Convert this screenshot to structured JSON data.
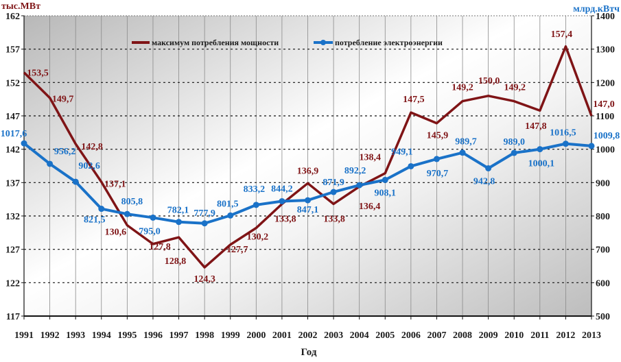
{
  "chart_data": {
    "type": "line",
    "title": "",
    "xlabel": "Год",
    "ylabel_left": "тыс.МВт",
    "ylabel_right": "млрд.кВтч",
    "ylim_left": [
      117,
      162
    ],
    "yticks_left": [
      117,
      122,
      127,
      132,
      137,
      142,
      147,
      152,
      157,
      162
    ],
    "ylim_right": [
      500,
      1400
    ],
    "yticks_right": [
      500,
      600,
      700,
      800,
      900,
      1000,
      1100,
      1200,
      1300,
      1400
    ],
    "grid": true,
    "legend_placement": "top-center",
    "categories": [
      "1991",
      "1992",
      "1993",
      "1994",
      "1995",
      "1996",
      "1997",
      "1998",
      "1999",
      "2000",
      "2001",
      "2002",
      "2003",
      "2004",
      "2005",
      "2006",
      "2007",
      "2008",
      "2009",
      "2010",
      "2011",
      "2012",
      "2013"
    ],
    "series": [
      {
        "name": "максимум потребления мощности",
        "axis": "left",
        "color": "#7f1416",
        "values": [
          153.5,
          149.7,
          142.8,
          137.1,
          130.6,
          127.8,
          128.8,
          124.3,
          127.7,
          130.2,
          133.8,
          136.9,
          133.8,
          136.4,
          138.4,
          147.5,
          145.9,
          149.2,
          150.0,
          149.2,
          147.8,
          157.4,
          147.0
        ],
        "labels": [
          "153,5",
          "149,7",
          "142,8",
          "137,1",
          "130,6",
          "127,8",
          "128,8",
          "124,3",
          "127,7",
          "130,2",
          "133,8",
          "136,9",
          "133,8",
          "136,4",
          "138,4",
          "147,5",
          "145,9",
          "149,2",
          "150,0",
          "149,2",
          "147,8",
          "157,4",
          "147,0"
        ]
      },
      {
        "name": "потребление электроэнергии",
        "axis": "right",
        "color": "#1a72c8",
        "values": [
          1017.6,
          956.2,
          902.6,
          821.5,
          805.8,
          795.0,
          782.1,
          777.9,
          801.5,
          833.2,
          844.2,
          847.1,
          871.9,
          892.2,
          908.1,
          949.1,
          970.7,
          989.7,
          942.8,
          989.0,
          1000.1,
          1016.5,
          1009.8
        ],
        "labels": [
          "1017,6",
          "956,2",
          "902,6",
          "821,5",
          "805,8",
          "795,0",
          "782,1",
          "777,9",
          "801,5",
          "833,2",
          "844,2",
          "847,1",
          "871,9",
          "892,2",
          "908,1",
          "949,1",
          "970,7",
          "989,7",
          "942,8",
          "989,0",
          "1000,1",
          "1016,5",
          "1009,8"
        ]
      }
    ]
  }
}
